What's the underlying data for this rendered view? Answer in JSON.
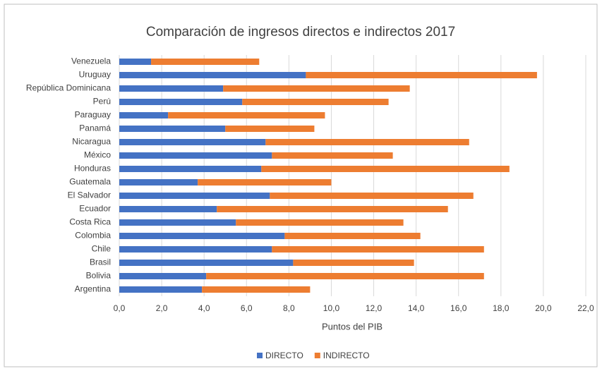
{
  "chart_data": {
    "type": "stacked_barh",
    "title": "Comparación de ingresos directos e indirectos 2017",
    "x_label": "Puntos del PIB",
    "categories": [
      "Venezuela",
      "Uruguay",
      "República Dominicana",
      "Perú",
      "Paraguay",
      "Panamá",
      "Nicaragua",
      "México",
      "Honduras",
      "Guatemala",
      "El Salvador",
      "Ecuador",
      "Costa Rica",
      "Colombia",
      "Chile",
      "Brasil",
      "Bolivia",
      "Argentina"
    ],
    "series": [
      {
        "name": "DIRECTO",
        "color": "#4472c4",
        "values": [
          1.5,
          8.8,
          4.9,
          5.8,
          2.3,
          5.0,
          6.9,
          7.2,
          6.7,
          3.7,
          7.1,
          4.6,
          5.5,
          7.8,
          7.2,
          8.2,
          4.1,
          3.9
        ]
      },
      {
        "name": "INDIRECTO",
        "color": "#ed7d31",
        "values": [
          5.1,
          10.9,
          8.8,
          6.9,
          7.4,
          4.2,
          9.6,
          5.7,
          11.7,
          6.3,
          9.6,
          10.9,
          7.9,
          6.4,
          10.0,
          5.7,
          13.1,
          5.1
        ]
      }
    ],
    "xlim": [
      0,
      22
    ],
    "xticks": [
      {
        "value": 0,
        "label": "0,0"
      },
      {
        "value": 2,
        "label": "2,0"
      },
      {
        "value": 4,
        "label": "4,0"
      },
      {
        "value": 6,
        "label": "6,0"
      },
      {
        "value": 8,
        "label": "8,0"
      },
      {
        "value": 10,
        "label": "10,0"
      },
      {
        "value": 12,
        "label": "12,0"
      },
      {
        "value": 14,
        "label": "14,0"
      },
      {
        "value": 16,
        "label": "16,0"
      },
      {
        "value": 18,
        "label": "18,0"
      },
      {
        "value": 20,
        "label": "20,0"
      },
      {
        "value": 22,
        "label": "22,0"
      }
    ],
    "grid": true,
    "legend": "bottom"
  }
}
